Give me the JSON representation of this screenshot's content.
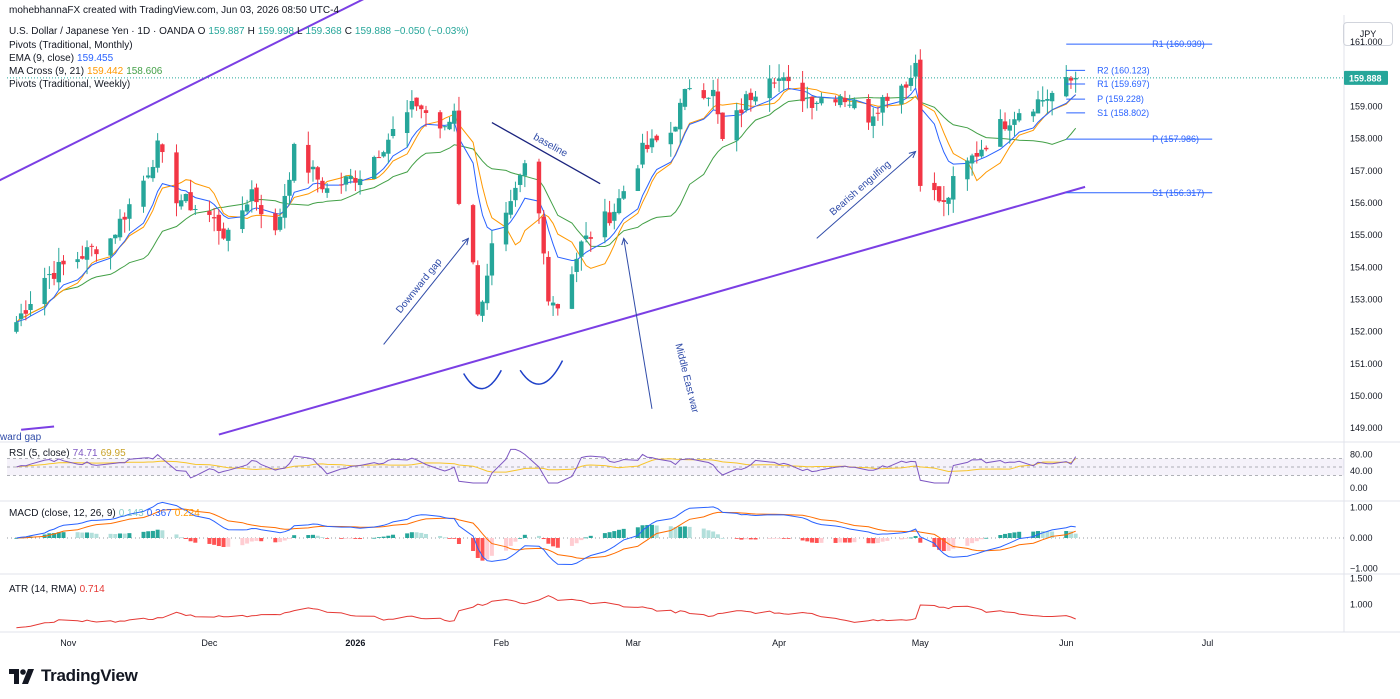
{
  "credit": "mohebhannaFX created with TradingView.com, Jun 03, 2026 08:50 UTC-4",
  "logo_text": "TradingView",
  "currency_button": "JPY",
  "legend": {
    "symbol": "U.S. Dollar / Japanese Yen · 1D · OANDA",
    "open_label": "O",
    "open": "159.887",
    "high_label": "H",
    "high": "159.998",
    "low_label": "L",
    "low": "159.368",
    "close_label": "C",
    "close": "159.888",
    "change": "−0.050 (−0.03%)",
    "pivots_monthly": "Pivots (Traditional, Monthly)",
    "ema_label": "EMA (9, close)",
    "ema_value": "159.455",
    "ma_label": "MA Cross (9, 21)",
    "ma_fast": "159.442",
    "ma_slow": "158.606",
    "pivots_weekly": "Pivots (Traditional, Weekly)",
    "rsi_label": "RSI (5, close)",
    "rsi_value": "74.71",
    "rsi_ma": "69.95",
    "macd_label": "MACD (close, 12, 26, 9)",
    "macd_hist": "0.143",
    "macd_line": "0.367",
    "macd_signal": "0.224",
    "atr_label": "ATR (14, RMA)",
    "atr_value": "0.714"
  },
  "colors": {
    "up": "#26a69a",
    "down": "#f23645",
    "ema": "#2962ff",
    "ma_fast": "#ff9800",
    "ma_slow": "#43a047",
    "trend": "#7b3fe4",
    "annot": "#2f4ba8",
    "pivot": "#2962ff",
    "rsi": "#7e57c2",
    "atr": "#e53935",
    "price": "#26a69a"
  },
  "chart_data": [
    {
      "type": "candlestick",
      "title": "U.S. Dollar / Japanese Yen · 1D · OANDA",
      "x_ticks": [
        "Nov",
        "Dec",
        "2026",
        "Feb",
        "Mar",
        "Apr",
        "May",
        "Jun",
        "Jul"
      ],
      "y_ticks": [
        "149.000",
        "150.000",
        "151.000",
        "152.000",
        "153.000",
        "154.000",
        "155.000",
        "156.000",
        "157.000",
        "158.000",
        "159.000",
        "161.000"
      ],
      "ylim": [
        148.6,
        161.75
      ],
      "current_price": "159.888",
      "anchors": [
        [
          "2025-10-21",
          152.3
        ],
        [
          "2025-10-27",
          153.7
        ],
        [
          "2025-11-03",
          154.3
        ],
        [
          "2025-11-10",
          154.9
        ],
        [
          "2025-11-17",
          156.7
        ],
        [
          "2025-11-20",
          157.7
        ],
        [
          "2025-11-24",
          156.2
        ],
        [
          "2025-12-01",
          155.6
        ],
        [
          "2025-12-05",
          154.9
        ],
        [
          "2025-12-10",
          156.4
        ],
        [
          "2025-12-15",
          155.0
        ],
        [
          "2025-12-19",
          157.6
        ],
        [
          "2025-12-26",
          156.4
        ],
        [
          "2026-01-02",
          156.9
        ],
        [
          "2026-01-09",
          158.2
        ],
        [
          "2026-01-14",
          159.1
        ],
        [
          "2026-01-20",
          158.2
        ],
        [
          "2026-01-22",
          158.9
        ],
        [
          "2026-01-23",
          156.1
        ],
        [
          "2026-01-26",
          154.3
        ],
        [
          "2026-01-27",
          152.4
        ],
        [
          "2026-01-30",
          154.6
        ],
        [
          "2026-02-03",
          155.8
        ],
        [
          "2026-02-06",
          157.1
        ],
        [
          "2026-02-09",
          155.6
        ],
        [
          "2026-02-11",
          153.2
        ],
        [
          "2026-02-13",
          152.8
        ],
        [
          "2026-02-18",
          154.7
        ],
        [
          "2026-02-25",
          155.8
        ],
        [
          "2026-03-03",
          157.6
        ],
        [
          "2026-03-09",
          158.2
        ],
        [
          "2026-03-13",
          159.7
        ],
        [
          "2026-03-18",
          159.4
        ],
        [
          "2026-03-20",
          157.9
        ],
        [
          "2026-03-25",
          159.2
        ],
        [
          "2026-03-30",
          160.1
        ],
        [
          "2026-04-03",
          159.6
        ],
        [
          "2026-04-08",
          159.2
        ],
        [
          "2026-04-14",
          159.4
        ],
        [
          "2026-04-20",
          158.7
        ],
        [
          "2026-04-24",
          159.4
        ],
        [
          "2026-04-29",
          159.9
        ],
        [
          "2026-04-30",
          160.4
        ],
        [
          "2026-05-01",
          156.8
        ],
        [
          "2026-05-06",
          155.9
        ],
        [
          "2026-05-08",
          156.6
        ],
        [
          "2026-05-12",
          157.4
        ],
        [
          "2026-05-18",
          158.4
        ],
        [
          "2026-05-22",
          158.9
        ],
        [
          "2026-05-28",
          159.3
        ],
        [
          "2026-06-03",
          159.888
        ]
      ],
      "trendlines": [
        {
          "from": [
            "2025-10-16",
            156.6
          ],
          "to": [
            "2026-02-22",
            166.0
          ]
        },
        {
          "from": [
            "2025-12-03",
            148.8
          ],
          "to": [
            "2026-06-05",
            156.5
          ]
        },
        {
          "from": [
            "2025-10-22",
            148.95
          ],
          "to": [
            "2025-10-29",
            149.05
          ]
        }
      ],
      "annotations": [
        {
          "text": "Downward gap",
          "arrow_from": [
            "2026-01-07",
            151.6
          ],
          "arrow_to": [
            "2026-01-25",
            154.9
          ]
        },
        {
          "text": "ward gap"
        },
        {
          "text": "baseline",
          "line_from": [
            "2026-01-30",
            158.5
          ],
          "line_to": [
            "2026-02-22",
            156.6
          ]
        },
        {
          "text": "Middle East war",
          "arrow_from": [
            "2026-03-05",
            149.6
          ],
          "arrow_to": [
            "2026-02-27",
            154.9
          ]
        },
        {
          "text": "Bearish engulfing",
          "arrow_from": [
            "2026-04-09",
            154.9
          ],
          "arrow_to": [
            "2026-04-30",
            157.6
          ]
        }
      ],
      "arcs": [
        {
          "from": [
            "2026-01-24",
            150.7
          ],
          "to": [
            "2026-02-01",
            150.8
          ]
        },
        {
          "from": [
            "2026-02-05",
            150.8
          ],
          "to": [
            "2026-02-14",
            151.1
          ]
        }
      ],
      "pivots": [
        {
          "label": "R1 (160.939)",
          "value": 160.939,
          "from": "2026-06-01",
          "to": "2026-07-02"
        },
        {
          "label": "P (157.986)",
          "value": 157.986,
          "from": "2026-06-01",
          "to": "2026-07-02"
        },
        {
          "label": "S1 (156.317)",
          "value": 156.317,
          "from": "2026-06-01",
          "to": "2026-07-02"
        },
        {
          "label": "R2 (160.123)",
          "value": 160.123,
          "from": "2026-06-01",
          "to": "2026-06-05"
        },
        {
          "label": "R1 (159.697)",
          "value": 159.697,
          "from": "2026-06-01",
          "to": "2026-06-05"
        },
        {
          "label": "P (159.228)",
          "value": 159.228,
          "from": "2026-06-01",
          "to": "2026-06-05"
        },
        {
          "label": "S1 (158.802)",
          "value": 158.802,
          "from": "2026-06-01",
          "to": "2026-06-05"
        }
      ]
    },
    {
      "type": "line",
      "title": "RSI (5, close)",
      "y_ticks": [
        "80.00",
        "40.00",
        "0.00"
      ],
      "ylim": [
        0,
        100
      ],
      "bands": [
        30,
        50,
        70
      ],
      "series": [
        {
          "name": "RSI (5, close)",
          "last": 74.71
        },
        {
          "name": "RSI-based MA",
          "last": 69.95
        }
      ]
    },
    {
      "type": "bar",
      "title": "MACD (close, 12, 26, 9)",
      "y_ticks": [
        "1.000",
        "0.000",
        "−1.000"
      ],
      "ylim": [
        -1.12,
        1.12
      ],
      "series": [
        {
          "name": "Histogram",
          "last": 0.143
        },
        {
          "name": "MACD",
          "last": 0.367
        },
        {
          "name": "Signal",
          "last": 0.224
        }
      ]
    },
    {
      "type": "line",
      "title": "ATR (14, RMA)",
      "y_ticks": [
        "1.500",
        "1.000"
      ],
      "ylim": [
        0.5,
        1.55
      ],
      "series": [
        {
          "name": "ATR",
          "last": 0.714
        }
      ]
    }
  ]
}
